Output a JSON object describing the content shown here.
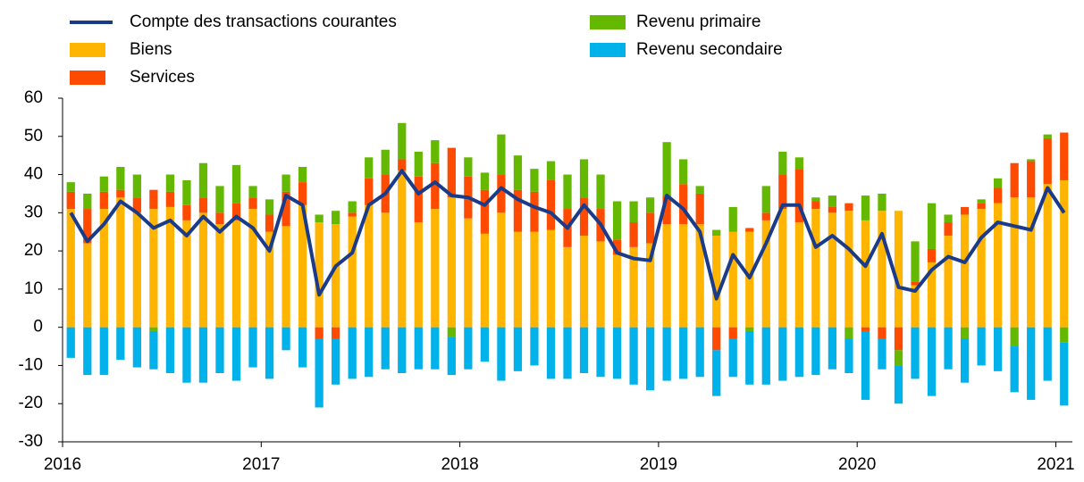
{
  "chart_data": {
    "type": "bar",
    "categories": [
      "2016",
      null,
      null,
      null,
      null,
      null,
      null,
      null,
      null,
      null,
      null,
      null,
      "2017",
      null,
      null,
      null,
      null,
      null,
      null,
      null,
      null,
      null,
      null,
      null,
      "2018",
      null,
      null,
      null,
      null,
      null,
      null,
      null,
      null,
      null,
      null,
      null,
      "2019",
      null,
      null,
      null,
      null,
      null,
      null,
      null,
      null,
      null,
      null,
      null,
      "2020",
      null,
      null,
      null,
      null,
      null,
      null,
      null,
      null,
      null,
      null,
      null,
      "2021"
    ],
    "series": [
      {
        "name": "Compte des transactions courantes",
        "type": "line",
        "color": "#1a3a8a",
        "values": [
          30,
          22.5,
          27,
          33,
          30,
          26,
          28,
          24,
          29,
          25,
          29,
          26,
          20,
          34.5,
          32,
          8.5,
          16,
          19.5,
          32,
          35,
          41,
          35,
          38,
          34.5,
          34,
          32,
          36.5,
          33.5,
          31.5,
          30,
          26,
          32,
          27,
          19.5,
          18,
          17.5,
          34.5,
          31,
          25,
          7.5,
          19,
          13,
          22,
          32,
          32,
          21,
          24,
          20.5,
          16,
          24.5,
          10.5,
          9.5,
          15,
          18.5,
          17,
          23.5,
          27.5,
          26.5,
          25.5,
          36.5,
          30
        ]
      },
      {
        "name": "Biens",
        "color": "#ffb400",
        "values": [
          31,
          22,
          31,
          34,
          30,
          31,
          31.5,
          28,
          30,
          27,
          28,
          31,
          25,
          26.5,
          32,
          27.5,
          27,
          29,
          32,
          30,
          41,
          27.5,
          31,
          34,
          28.5,
          24.5,
          30,
          25,
          25,
          25.5,
          21,
          24,
          22.5,
          19,
          21,
          22,
          27,
          27,
          27,
          24,
          25,
          25,
          28,
          31,
          27.5,
          31,
          30,
          30.5,
          28,
          30.5,
          30.5,
          11,
          17,
          24,
          29.5,
          31,
          32.5,
          34,
          34,
          37.5,
          38.5
        ]
      },
      {
        "name": "Services",
        "color": "#ff4b00",
        "values": [
          4.5,
          9,
          4.5,
          2,
          4,
          5,
          4,
          4,
          4,
          3,
          4.5,
          3,
          4.5,
          9,
          6,
          -3,
          -3,
          1,
          7,
          10,
          3,
          12,
          12,
          13,
          11,
          11.5,
          10,
          11,
          10.5,
          13,
          10,
          10,
          8.5,
          4,
          6.5,
          8,
          7.5,
          10.5,
          8,
          -6,
          -3,
          1,
          2,
          9,
          14,
          2,
          1.5,
          2,
          -1,
          -3,
          -6,
          1,
          3.5,
          3.5,
          2,
          1.5,
          4,
          9,
          9.5,
          12,
          12.5
        ]
      },
      {
        "name": "Revenu primaire",
        "color": "#65b800",
        "values": [
          2.5,
          4,
          4,
          6,
          6,
          -1,
          4.5,
          6.5,
          9,
          7,
          10,
          3,
          4,
          4.5,
          4,
          2,
          3.5,
          3,
          5.5,
          6.5,
          9.5,
          6.5,
          6,
          -2.5,
          5,
          4.5,
          10.5,
          9,
          6,
          5,
          9,
          10,
          9,
          10,
          5.5,
          4,
          14,
          6.5,
          2,
          1.5,
          6.5,
          -1,
          7,
          6,
          3,
          1,
          3,
          -3,
          6.5,
          4.5,
          -4,
          10.5,
          12,
          2,
          -3,
          1,
          2.5,
          -5,
          0.5,
          1,
          -4
        ]
      },
      {
        "name": "Revenu secondaire",
        "color": "#00b1ea",
        "values": [
          -8,
          -12.5,
          -12.5,
          -8.5,
          -10.5,
          -10,
          -12,
          -14.5,
          -14.5,
          -12,
          -14,
          -10.5,
          -13.5,
          -6,
          -10.5,
          -18,
          -12,
          -13.5,
          -13,
          -11,
          -12,
          -11,
          -11,
          -10,
          -11,
          -9,
          -14,
          -11.5,
          -10,
          -13.5,
          -13.5,
          -12,
          -13,
          -13.5,
          -15,
          -16.5,
          -14,
          -13.5,
          -13,
          -12,
          -10,
          -14,
          -15,
          -14,
          -13,
          -12.5,
          -11,
          -9,
          -18,
          -8,
          -10,
          -13.5,
          -18,
          -11,
          -11.5,
          -10,
          -11.5,
          -12,
          -19,
          -14,
          -16.5
        ]
      }
    ],
    "ylim": [
      -30,
      60
    ],
    "yticks": [
      -30,
      -20,
      -10,
      0,
      10,
      20,
      30,
      40,
      50,
      60
    ],
    "grid": false
  }
}
